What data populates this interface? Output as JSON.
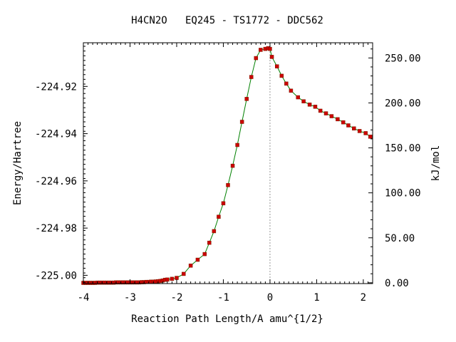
{
  "chart_data": {
    "type": "line",
    "title": "H4CN2O   EQ245 - TS1772 - DDC562",
    "xlabel": "Reaction Path Length/A amu^{1/2}",
    "ylabel": "Energy/Hartree",
    "y2label": "kJ/mol",
    "xlim": [
      -4.0,
      2.2
    ],
    "ylim": [
      -225.0035,
      -224.9015
    ],
    "y2lim": [
      -0.9,
      266.9
    ],
    "x_ticks": [
      -4,
      -3,
      -2,
      -1,
      0,
      1,
      2
    ],
    "x_tick_labels": [
      "-4",
      "-3",
      "-2",
      "-1",
      "0",
      "1",
      "2"
    ],
    "y_ticks": [
      -225.0,
      -224.98,
      -224.96,
      -224.94,
      -224.92
    ],
    "y_tick_labels": [
      "-225.00",
      "-224.98",
      "-224.96",
      "-224.94",
      "-224.92"
    ],
    "y2_ticks": [
      0,
      50,
      100,
      150,
      200,
      250
    ],
    "y2_tick_labels": [
      "0.00",
      "50.00",
      "100.00",
      "150.00",
      "200.00",
      "250.00"
    ],
    "ts_marker_x": 0.0,
    "line_color": "#008000",
    "point_color": "#cc0000",
    "ts_marker_color": "#999999",
    "series": [
      {
        "x": [
          -4.0,
          -3.95,
          -3.9,
          -3.85,
          -3.8,
          -3.75,
          -3.7,
          -3.65,
          -3.6,
          -3.55,
          -3.5,
          -3.45,
          -3.4,
          -3.35,
          -3.3,
          -3.25,
          -3.2,
          -3.15,
          -3.1,
          -3.05,
          -3.0,
          -2.95,
          -2.9,
          -2.85,
          -2.8,
          -2.75,
          -2.7,
          -2.65,
          -2.6,
          -2.55,
          -2.5,
          -2.45,
          -2.4,
          -2.35,
          -2.3,
          -2.25,
          -2.2,
          -2.1,
          -2.0,
          -1.85,
          -1.7,
          -1.55,
          -1.4,
          -1.3,
          -1.2,
          -1.1,
          -1.0,
          -0.9,
          -0.8,
          -0.7,
          -0.6,
          -0.5,
          -0.4,
          -0.3,
          -0.2,
          -0.1,
          -0.04,
          0.0,
          0.04,
          0.15,
          0.25,
          0.35,
          0.45,
          0.6,
          0.72,
          0.85,
          0.97,
          1.08,
          1.2,
          1.32,
          1.45,
          1.57,
          1.68,
          1.8,
          1.92,
          2.05,
          2.15
        ],
        "y": [
          -225.0032,
          -225.0032,
          -225.0032,
          -225.0032,
          -225.0032,
          -225.0032,
          -225.0031,
          -225.0031,
          -225.0031,
          -225.0031,
          -225.0031,
          -225.0031,
          -225.0031,
          -225.0031,
          -225.003,
          -225.003,
          -225.003,
          -225.003,
          -225.003,
          -225.003,
          -225.003,
          -225.003,
          -225.003,
          -225.003,
          -225.003,
          -225.0029,
          -225.0029,
          -225.0028,
          -225.0028,
          -225.0027,
          -225.0027,
          -225.0026,
          -225.0025,
          -225.0024,
          -225.0022,
          -225.0019,
          -225.0018,
          -225.0015,
          -225.0011,
          -224.9994,
          -224.9959,
          -224.9934,
          -224.991,
          -224.9862,
          -224.9813,
          -224.9752,
          -224.9695,
          -224.9618,
          -224.9536,
          -224.9448,
          -224.935,
          -224.9253,
          -224.916,
          -224.908,
          -224.9045,
          -224.9041,
          -224.9038,
          -224.9041,
          -224.9075,
          -224.9115,
          -224.9155,
          -224.9188,
          -224.9218,
          -224.9246,
          -224.9263,
          -224.9277,
          -224.9286,
          -224.9303,
          -224.9314,
          -224.9326,
          -224.9339,
          -224.9352,
          -224.9365,
          -224.9378,
          -224.9389,
          -224.9398,
          -224.9413
        ]
      }
    ]
  }
}
